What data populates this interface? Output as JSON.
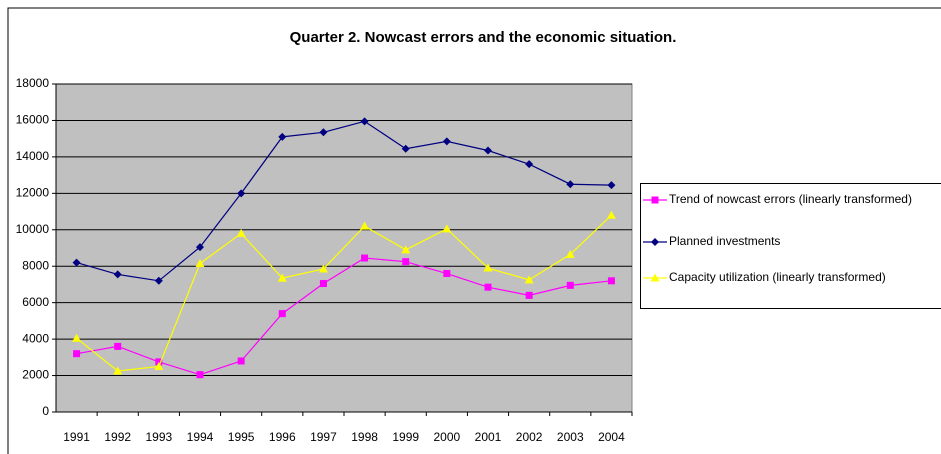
{
  "chart_data": {
    "type": "line",
    "title": "Quarter 2. Nowcast errors and the economic situation.",
    "categories": [
      "1991",
      "1992",
      "1993",
      "1994",
      "1995",
      "1996",
      "1997",
      "1998",
      "1999",
      "2000",
      "2001",
      "2002",
      "2003",
      "2004"
    ],
    "series": [
      {
        "name": "Trend of nowcast errors (linearly transformed)",
        "color": "#ff00ff",
        "marker": "square",
        "values": [
          3200,
          3600,
          2750,
          2050,
          2800,
          5400,
          7050,
          8450,
          8250,
          7600,
          6850,
          6400,
          6950,
          7200
        ]
      },
      {
        "name": "Planned investments",
        "color": "#000080",
        "marker": "diamond",
        "values": [
          8200,
          7550,
          7200,
          9050,
          12000,
          15100,
          15350,
          15950,
          14450,
          14850,
          14350,
          13600,
          12500,
          12450
        ]
      },
      {
        "name": "Capacity utilization (linearly transformed)",
        "color": "#ffff00",
        "marker": "triangle",
        "values": [
          4050,
          2250,
          2500,
          8150,
          9800,
          7350,
          7850,
          10200,
          8900,
          10050,
          7900,
          7250,
          8650,
          10800
        ]
      }
    ],
    "ylim": [
      0,
      18000
    ],
    "yticks": [
      0,
      2000,
      4000,
      6000,
      8000,
      10000,
      12000,
      14000,
      16000,
      18000
    ],
    "grid": true,
    "legend": "right"
  }
}
